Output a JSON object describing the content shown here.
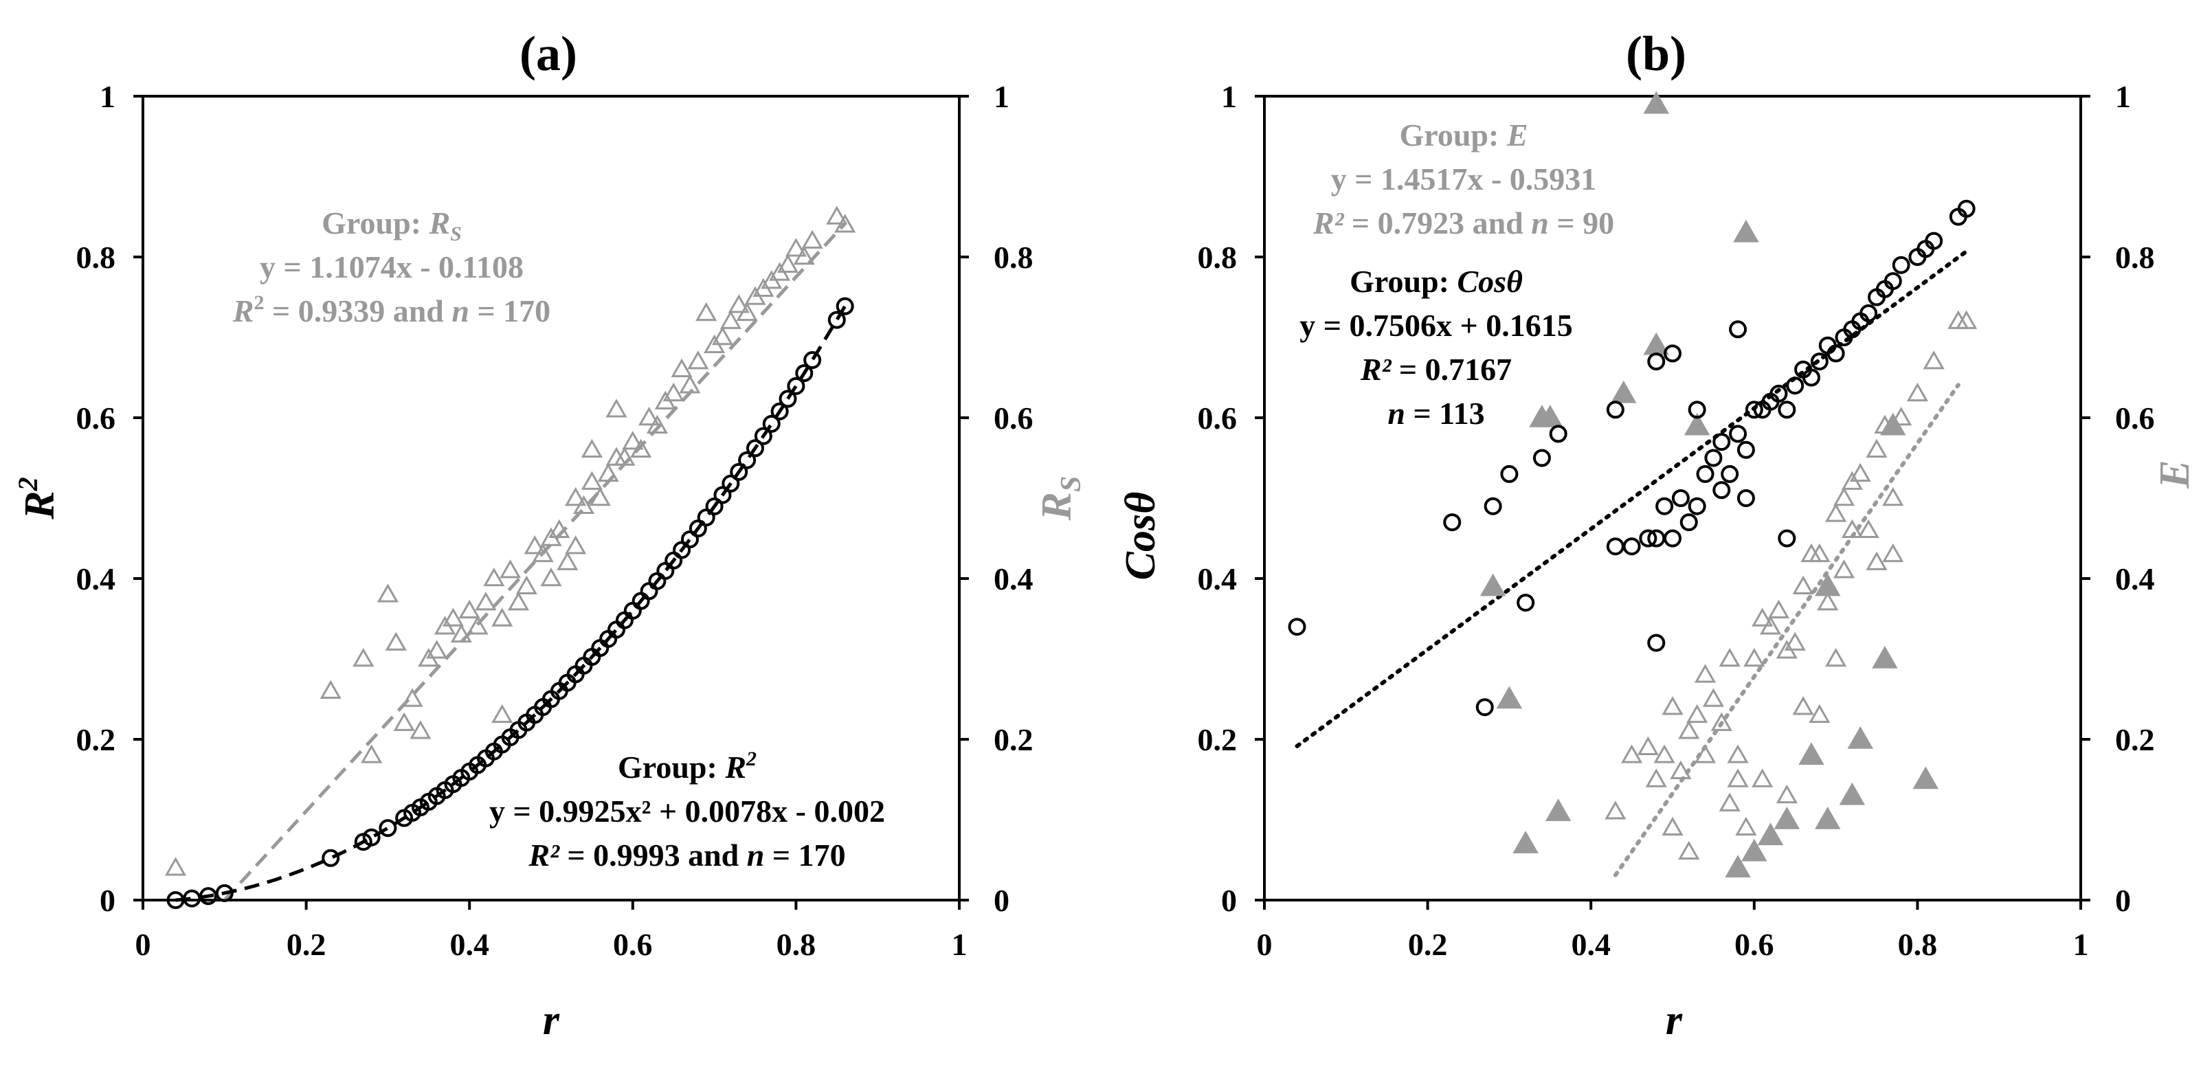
{
  "chart_data": [
    {
      "panel": "(a)",
      "type": "scatter",
      "xlabel": "r",
      "ylabel": "R²",
      "y2label": "R_S",
      "xlim": [
        0,
        1
      ],
      "ylim": [
        0,
        1
      ],
      "y2lim": [
        0,
        1
      ],
      "xticks": [
        "0",
        "0.2",
        "0.4",
        "0.6",
        "0.8",
        "1"
      ],
      "yticks": [
        "0",
        "0.2",
        "0.4",
        "0.6",
        "0.8",
        "1"
      ],
      "y2ticks": [
        "0",
        "0.2",
        "0.4",
        "0.6",
        "0.8",
        "1"
      ],
      "colors": {
        "R2": "#000000",
        "RS": "#999999"
      },
      "annotations": {
        "rs": {
          "group_prefix": "Group: ",
          "group_name": "R",
          "group_sub": "S",
          "eq": "y = 1.1074x - 0.1108",
          "r2_label": "R",
          "r2_rest": " = 0.9339 and ",
          "n_label": "n",
          "n_rest": " = 170"
        },
        "r2": {
          "group_prefix": "Group: ",
          "group_name": "R",
          "group_sup": "2",
          "eq": "y = 0.9925x² + 0.0078x - 0.002",
          "r2_label": "R²",
          "r2_rest": " = 0.9993 and ",
          "n_label": "n",
          "n_rest": " = 170"
        }
      },
      "series": [
        {
          "name": "R²",
          "marker": "circle",
          "color": "#000000",
          "fit": {
            "kind": "quadratic",
            "a": 0.9925,
            "b": 0.0078,
            "c": -0.002,
            "x": [
              0.04,
              0.865
            ],
            "style": "dashed"
          },
          "x": [
            0.04,
            0.06,
            0.08,
            0.1,
            0.23,
            0.27,
            0.28,
            0.3,
            0.32,
            0.33,
            0.34,
            0.35,
            0.36,
            0.37,
            0.38,
            0.39,
            0.4,
            0.41,
            0.42,
            0.43,
            0.44,
            0.45,
            0.46,
            0.47,
            0.48,
            0.49,
            0.5,
            0.51,
            0.52,
            0.53,
            0.54,
            0.55,
            0.56,
            0.57,
            0.58,
            0.59,
            0.6,
            0.61,
            0.62,
            0.63,
            0.64,
            0.65,
            0.66,
            0.67,
            0.68,
            0.69,
            0.7,
            0.71,
            0.72,
            0.73,
            0.74,
            0.75,
            0.76,
            0.77,
            0.78,
            0.79,
            0.8,
            0.81,
            0.82,
            0.85,
            0.86
          ]
        },
        {
          "name": "R_S",
          "marker": "triangle-open",
          "color": "#999999",
          "fit": {
            "kind": "linear",
            "m": 1.1074,
            "b": -0.1108,
            "x": [
              0.1,
              0.86
            ],
            "style": "dashed"
          },
          "points": [
            [
              0.04,
              0.04
            ],
            [
              0.23,
              0.26
            ],
            [
              0.27,
              0.3
            ],
            [
              0.28,
              0.18
            ],
            [
              0.3,
              0.38
            ],
            [
              0.31,
              0.32
            ],
            [
              0.32,
              0.22
            ],
            [
              0.33,
              0.25
            ],
            [
              0.34,
              0.21
            ],
            [
              0.35,
              0.3
            ],
            [
              0.36,
              0.31
            ],
            [
              0.37,
              0.34
            ],
            [
              0.38,
              0.35
            ],
            [
              0.39,
              0.33
            ],
            [
              0.4,
              0.36
            ],
            [
              0.41,
              0.34
            ],
            [
              0.42,
              0.37
            ],
            [
              0.43,
              0.4
            ],
            [
              0.44,
              0.35
            ],
            [
              0.44,
              0.23
            ],
            [
              0.45,
              0.41
            ],
            [
              0.46,
              0.37
            ],
            [
              0.47,
              0.39
            ],
            [
              0.48,
              0.44
            ],
            [
              0.49,
              0.43
            ],
            [
              0.5,
              0.45
            ],
            [
              0.5,
              0.4
            ],
            [
              0.51,
              0.46
            ],
            [
              0.52,
              0.42
            ],
            [
              0.53,
              0.5
            ],
            [
              0.53,
              0.44
            ],
            [
              0.54,
              0.49
            ],
            [
              0.55,
              0.52
            ],
            [
              0.55,
              0.56
            ],
            [
              0.56,
              0.5
            ],
            [
              0.57,
              0.53
            ],
            [
              0.58,
              0.55
            ],
            [
              0.58,
              0.61
            ],
            [
              0.59,
              0.55
            ],
            [
              0.6,
              0.57
            ],
            [
              0.61,
              0.56
            ],
            [
              0.62,
              0.6
            ],
            [
              0.63,
              0.59
            ],
            [
              0.64,
              0.62
            ],
            [
              0.65,
              0.63
            ],
            [
              0.66,
              0.66
            ],
            [
              0.67,
              0.64
            ],
            [
              0.68,
              0.67
            ],
            [
              0.69,
              0.73
            ],
            [
              0.7,
              0.69
            ],
            [
              0.71,
              0.7
            ],
            [
              0.72,
              0.72
            ],
            [
              0.73,
              0.74
            ],
            [
              0.74,
              0.73
            ],
            [
              0.75,
              0.75
            ],
            [
              0.76,
              0.76
            ],
            [
              0.77,
              0.77
            ],
            [
              0.78,
              0.78
            ],
            [
              0.79,
              0.79
            ],
            [
              0.8,
              0.81
            ],
            [
              0.81,
              0.8
            ],
            [
              0.82,
              0.82
            ],
            [
              0.85,
              0.85
            ],
            [
              0.86,
              0.84
            ]
          ]
        }
      ]
    },
    {
      "panel": "(b)",
      "type": "scatter",
      "xlabel": "r",
      "ylabel": "Cosθ",
      "y2label": "E",
      "xlim": [
        0,
        1
      ],
      "ylim": [
        0,
        1
      ],
      "y2lim": [
        0,
        1
      ],
      "xticks": [
        "0",
        "0.2",
        "0.4",
        "0.6",
        "0.8",
        "1"
      ],
      "yticks": [
        "0",
        "0.2",
        "0.4",
        "0.6",
        "0.8",
        "1"
      ],
      "y2ticks": [
        "0",
        "0.2",
        "0.4",
        "0.6",
        "0.8",
        "1"
      ],
      "colors": {
        "cos": "#000000",
        "E": "#999999"
      },
      "annotations": {
        "e": {
          "group_prefix": "Group: ",
          "group_name": "E",
          "eq": "y = 1.4517x - 0.5931",
          "r2_label": "R²",
          "r2_rest": " = 0.7923  and ",
          "n_label": "n",
          "n_rest": " = 90"
        },
        "cos": {
          "group_prefix": "Group: ",
          "group_name": "Cosθ",
          "eq": "y = 0.7506x + 0.1615",
          "r2_label": "R²",
          "r2_rest": " = 0.7167",
          "n_label": "n",
          "n_rest": " = 113"
        }
      },
      "series": [
        {
          "name": "Cosθ",
          "marker": "circle",
          "color": "#000000",
          "fit": {
            "kind": "linear",
            "m": 0.7506,
            "b": 0.1615,
            "x": [
              0.04,
              0.86
            ],
            "style": "dotted"
          },
          "points": [
            [
              0.04,
              0.34
            ],
            [
              0.23,
              0.47
            ],
            [
              0.27,
              0.24
            ],
            [
              0.28,
              0.49
            ],
            [
              0.3,
              0.53
            ],
            [
              0.32,
              0.37
            ],
            [
              0.34,
              0.55
            ],
            [
              0.36,
              0.58
            ],
            [
              0.43,
              0.44
            ],
            [
              0.43,
              0.61
            ],
            [
              0.45,
              0.44
            ],
            [
              0.47,
              0.45
            ],
            [
              0.48,
              0.45
            ],
            [
              0.48,
              0.67
            ],
            [
              0.48,
              0.32
            ],
            [
              0.49,
              0.49
            ],
            [
              0.5,
              0.45
            ],
            [
              0.5,
              0.68
            ],
            [
              0.51,
              0.5
            ],
            [
              0.52,
              0.47
            ],
            [
              0.53,
              0.49
            ],
            [
              0.53,
              0.61
            ],
            [
              0.54,
              0.53
            ],
            [
              0.55,
              0.55
            ],
            [
              0.56,
              0.51
            ],
            [
              0.56,
              0.57
            ],
            [
              0.57,
              0.53
            ],
            [
              0.58,
              0.58
            ],
            [
              0.58,
              0.71
            ],
            [
              0.59,
              0.5
            ],
            [
              0.59,
              0.56
            ],
            [
              0.6,
              0.61
            ],
            [
              0.61,
              0.61
            ],
            [
              0.62,
              0.62
            ],
            [
              0.63,
              0.63
            ],
            [
              0.64,
              0.45
            ],
            [
              0.64,
              0.61
            ],
            [
              0.65,
              0.64
            ],
            [
              0.66,
              0.66
            ],
            [
              0.67,
              0.65
            ],
            [
              0.68,
              0.67
            ],
            [
              0.69,
              0.69
            ],
            [
              0.7,
              0.68
            ],
            [
              0.71,
              0.7
            ],
            [
              0.72,
              0.71
            ],
            [
              0.73,
              0.72
            ],
            [
              0.74,
              0.73
            ],
            [
              0.75,
              0.75
            ],
            [
              0.76,
              0.76
            ],
            [
              0.77,
              0.77
            ],
            [
              0.78,
              0.79
            ],
            [
              0.8,
              0.8
            ],
            [
              0.81,
              0.81
            ],
            [
              0.82,
              0.82
            ],
            [
              0.85,
              0.85
            ],
            [
              0.86,
              0.86
            ]
          ]
        },
        {
          "name": "E",
          "marker": "triangle",
          "color": "#999999",
          "fit": {
            "kind": "linear",
            "m": 1.4517,
            "b": -0.5931,
            "x": [
              0.43,
              0.85
            ],
            "style": "dotted"
          },
          "open_points": [
            [
              0.43,
              0.11
            ],
            [
              0.45,
              0.18
            ],
            [
              0.47,
              0.19
            ],
            [
              0.48,
              0.15
            ],
            [
              0.49,
              0.18
            ],
            [
              0.5,
              0.09
            ],
            [
              0.5,
              0.24
            ],
            [
              0.51,
              0.16
            ],
            [
              0.52,
              0.21
            ],
            [
              0.52,
              0.06
            ],
            [
              0.53,
              0.23
            ],
            [
              0.54,
              0.28
            ],
            [
              0.54,
              0.18
            ],
            [
              0.55,
              0.25
            ],
            [
              0.56,
              0.22
            ],
            [
              0.57,
              0.3
            ],
            [
              0.57,
              0.12
            ],
            [
              0.58,
              0.15
            ],
            [
              0.58,
              0.18
            ],
            [
              0.59,
              0.09
            ],
            [
              0.6,
              0.3
            ],
            [
              0.61,
              0.35
            ],
            [
              0.61,
              0.15
            ],
            [
              0.62,
              0.34
            ],
            [
              0.63,
              0.36
            ],
            [
              0.64,
              0.31
            ],
            [
              0.64,
              0.13
            ],
            [
              0.65,
              0.32
            ],
            [
              0.66,
              0.39
            ],
            [
              0.66,
              0.24
            ],
            [
              0.67,
              0.43
            ],
            [
              0.68,
              0.43
            ],
            [
              0.68,
              0.23
            ],
            [
              0.69,
              0.37
            ],
            [
              0.7,
              0.48
            ],
            [
              0.7,
              0.3
            ],
            [
              0.71,
              0.5
            ],
            [
              0.71,
              0.41
            ],
            [
              0.72,
              0.46
            ],
            [
              0.72,
              0.52
            ],
            [
              0.73,
              0.53
            ],
            [
              0.74,
              0.46
            ],
            [
              0.75,
              0.56
            ],
            [
              0.75,
              0.42
            ],
            [
              0.76,
              0.59
            ],
            [
              0.77,
              0.43
            ],
            [
              0.77,
              0.5
            ],
            [
              0.78,
              0.6
            ],
            [
              0.8,
              0.63
            ],
            [
              0.82,
              0.67
            ],
            [
              0.85,
              0.72
            ],
            [
              0.86,
              0.72
            ]
          ],
          "filled_points": [
            [
              0.28,
              0.39
            ],
            [
              0.3,
              0.25
            ],
            [
              0.32,
              0.07
            ],
            [
              0.34,
              0.6
            ],
            [
              0.35,
              0.6
            ],
            [
              0.36,
              0.11
            ],
            [
              0.44,
              0.63
            ],
            [
              0.48,
              0.99
            ],
            [
              0.48,
              0.69
            ],
            [
              0.53,
              0.59
            ],
            [
              0.58,
              0.04
            ],
            [
              0.59,
              0.83
            ],
            [
              0.6,
              0.06
            ],
            [
              0.62,
              0.08
            ],
            [
              0.64,
              0.1
            ],
            [
              0.67,
              0.18
            ],
            [
              0.69,
              0.1
            ],
            [
              0.69,
              0.39
            ],
            [
              0.72,
              0.13
            ],
            [
              0.73,
              0.2
            ],
            [
              0.76,
              0.3
            ],
            [
              0.77,
              0.59
            ],
            [
              0.81,
              0.15
            ]
          ]
        }
      ]
    }
  ]
}
